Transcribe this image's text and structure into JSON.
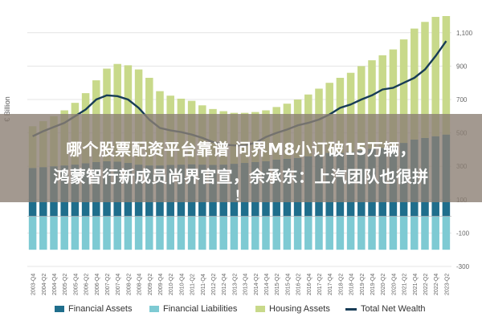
{
  "chart_data": {
    "type": "bar",
    "ylabel": "€ Billion",
    "ylim": [
      -300,
      1200
    ],
    "yticks": [
      -300,
      -100,
      100,
      300,
      500,
      700,
      900,
      1100
    ],
    "ytick_labels": [
      "-300",
      "-100",
      "100",
      "300",
      "500",
      "700",
      "900",
      "1,100"
    ],
    "categories": [
      "2003-Q4",
      "2004-Q2",
      "2004-Q4",
      "2005-Q2",
      "2005-Q4",
      "2006-Q2",
      "2006-Q4",
      "2007-Q2",
      "2007-Q4",
      "2008-Q2",
      "2008-Q4",
      "2009-Q2",
      "2009-Q4",
      "2010-Q2",
      "2010-Q4",
      "2011-Q2",
      "2011-Q4",
      "2012-Q2",
      "2012-Q4",
      "2013-Q2",
      "2013-Q4",
      "2014-Q2",
      "2014-Q4",
      "2015-Q2",
      "2015-Q4",
      "2016-Q2",
      "2016-Q4",
      "2017-Q2",
      "2017-Q4",
      "2018-Q2",
      "2018-Q4",
      "2019-Q2",
      "2019-Q4",
      "2020-Q2",
      "2020-Q4",
      "2021-Q2",
      "2021-Q4",
      "2022-Q2",
      "2022-Q4",
      "2023-Q2"
    ],
    "grid": true,
    "legend_position": "bottom",
    "series": [
      {
        "name": "Financial Assets",
        "kind": "bar",
        "color": "#1f6e8c",
        "values": [
          290,
          295,
          300,
          305,
          310,
          318,
          325,
          330,
          328,
          320,
          310,
          305,
          305,
          308,
          310,
          312,
          310,
          308,
          310,
          315,
          320,
          325,
          330,
          340,
          345,
          350,
          360,
          370,
          380,
          380,
          385,
          395,
          405,
          410,
          420,
          440,
          460,
          470,
          480,
          490
        ]
      },
      {
        "name": "Financial Liabilities",
        "kind": "bar",
        "color": "#7ecad3",
        "values": [
          -200,
          -200,
          -200,
          -200,
          -200,
          -200,
          -200,
          -200,
          -200,
          -200,
          -200,
          -200,
          -200,
          -200,
          -200,
          -200,
          -200,
          -200,
          -200,
          -200,
          -200,
          -200,
          -200,
          -200,
          -200,
          -200,
          -200,
          -200,
          -200,
          -200,
          -200,
          -200,
          -200,
          -200,
          -200,
          -200,
          -200,
          -200,
          -200,
          -200
        ]
      },
      {
        "name": "Housing Assets",
        "kind": "bar",
        "color": "#c8d98a",
        "values": [
          250,
          275,
          300,
          330,
          370,
          420,
          490,
          555,
          585,
          585,
          570,
          525,
          445,
          415,
          395,
          380,
          355,
          335,
          320,
          305,
          300,
          300,
          305,
          315,
          330,
          350,
          370,
          395,
          420,
          450,
          475,
          505,
          530,
          555,
          580,
          620,
          665,
          695,
          715,
          710
        ]
      },
      {
        "name": "Total Net Wealth",
        "kind": "line",
        "color": "#173c56",
        "values": [
          480,
          510,
          535,
          560,
          600,
          640,
          700,
          725,
          720,
          700,
          650,
          580,
          530,
          515,
          505,
          490,
          470,
          445,
          430,
          425,
          425,
          440,
          475,
          500,
          520,
          545,
          560,
          580,
          610,
          650,
          670,
          700,
          725,
          760,
          770,
          800,
          830,
          880,
          960,
          1050
        ]
      }
    ]
  },
  "overlay": {
    "line1": "哪个股票配资平台靠谱 问界M8小订破15万辆，",
    "line2": "鸿蒙智行新成员尚界官宣，余承东：上汽团队也很拼",
    "line3": "！"
  }
}
